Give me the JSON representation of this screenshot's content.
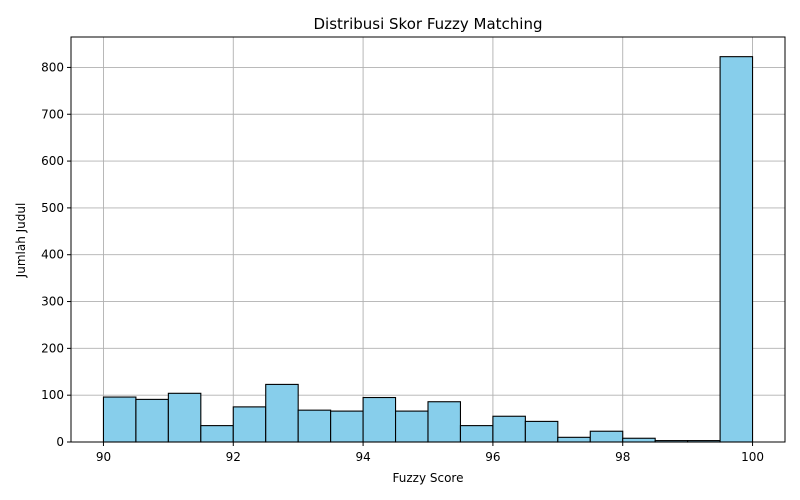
{
  "chart_data": {
    "type": "bar",
    "title": "Distribusi Skor Fuzzy Matching",
    "xlabel": "Fuzzy Score",
    "ylabel": "Jumlah Judul",
    "xlim": [
      89.5,
      100.5
    ],
    "ylim": [
      0,
      865
    ],
    "xticks": [
      90,
      92,
      94,
      96,
      98,
      100
    ],
    "yticks": [
      0,
      100,
      200,
      300,
      400,
      500,
      600,
      700,
      800
    ],
    "grid": true,
    "bar_color": "#87ceeb",
    "edge_color": "#000000",
    "bins": [
      {
        "x0": 90.0,
        "x1": 90.5,
        "value": 96
      },
      {
        "x0": 90.5,
        "x1": 91.0,
        "value": 91
      },
      {
        "x0": 91.0,
        "x1": 91.5,
        "value": 104
      },
      {
        "x0": 91.5,
        "x1": 92.0,
        "value": 35
      },
      {
        "x0": 92.0,
        "x1": 92.5,
        "value": 75
      },
      {
        "x0": 92.5,
        "x1": 93.0,
        "value": 123
      },
      {
        "x0": 93.0,
        "x1": 93.5,
        "value": 68
      },
      {
        "x0": 93.5,
        "x1": 94.0,
        "value": 66
      },
      {
        "x0": 94.0,
        "x1": 94.5,
        "value": 95
      },
      {
        "x0": 94.5,
        "x1": 95.0,
        "value": 66
      },
      {
        "x0": 95.0,
        "x1": 95.5,
        "value": 86
      },
      {
        "x0": 95.5,
        "x1": 96.0,
        "value": 35
      },
      {
        "x0": 96.0,
        "x1": 96.5,
        "value": 55
      },
      {
        "x0": 96.5,
        "x1": 97.0,
        "value": 44
      },
      {
        "x0": 97.0,
        "x1": 97.5,
        "value": 10
      },
      {
        "x0": 97.5,
        "x1": 98.0,
        "value": 23
      },
      {
        "x0": 98.0,
        "x1": 98.5,
        "value": 8
      },
      {
        "x0": 98.5,
        "x1": 99.0,
        "value": 3
      },
      {
        "x0": 99.0,
        "x1": 99.5,
        "value": 3
      },
      {
        "x0": 99.5,
        "x1": 100.0,
        "value": 823
      }
    ]
  }
}
